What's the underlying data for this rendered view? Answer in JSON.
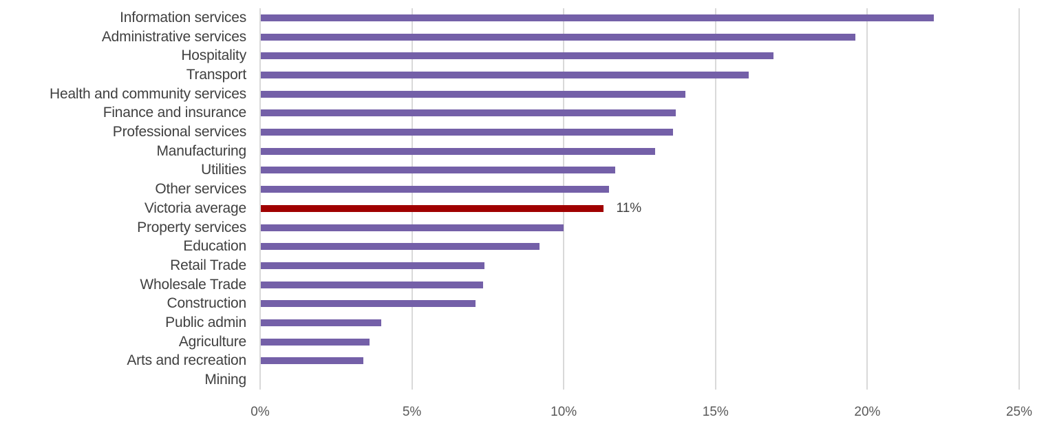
{
  "chart_data": {
    "type": "bar",
    "orientation": "horizontal",
    "title": "",
    "xlabel": "",
    "ylabel": "",
    "xlim": [
      0,
      25
    ],
    "x_ticks": [
      "0%",
      "5%",
      "10%",
      "15%",
      "20%",
      "25%"
    ],
    "x_tick_values": [
      0,
      5,
      10,
      15,
      20,
      25
    ],
    "grid": "vertical",
    "legend": "none",
    "categories": [
      "Information services",
      "Administrative services",
      "Hospitality",
      "Transport",
      "Health and community services",
      "Finance and insurance",
      "Professional services",
      "Manufacturing",
      "Utilities",
      "Other services",
      "Victoria average",
      "Property services",
      "Education",
      "Retail Trade",
      "Wholesale Trade",
      "Construction",
      "Public admin",
      "Agriculture",
      "Arts and recreation",
      "Mining"
    ],
    "values": [
      22.2,
      19.6,
      16.9,
      16.1,
      14.0,
      13.7,
      13.6,
      13.0,
      11.7,
      11.5,
      11.3,
      10.0,
      9.2,
      7.4,
      7.35,
      7.1,
      4.0,
      3.6,
      3.4,
      0.0
    ],
    "unit": "%",
    "highlight": {
      "category": "Victoria average",
      "index": 10,
      "label": "11%"
    },
    "colors": {
      "bar": "#7460a8",
      "highlight_bar": "#a00000",
      "gridline": "#d9d9d9",
      "text": "#404040"
    }
  }
}
